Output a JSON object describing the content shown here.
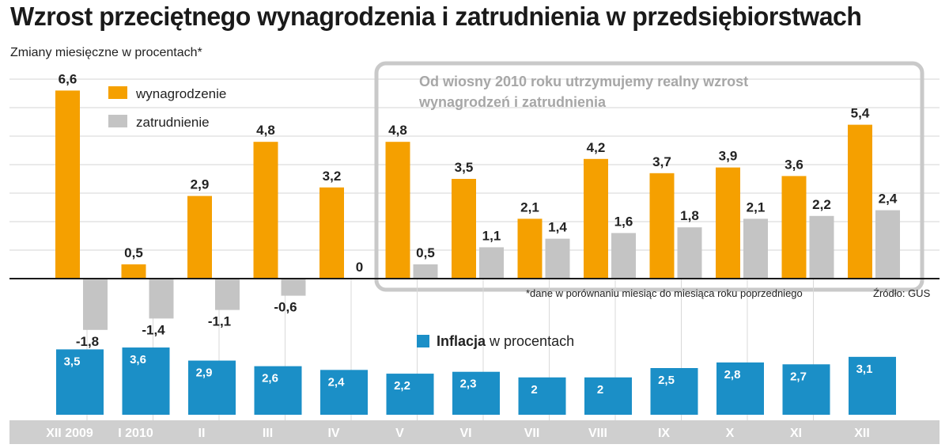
{
  "title": "Wzrost przeciętnego wynagrodzenia i zatrudnienia w przedsiębiorstwach",
  "subtitle": "Zmiany miesięczne w procentach*",
  "highlight_line1": "Od wiosny 2010 roku utrzymujemy realny wzrost",
  "highlight_line2": "wynagrodzeń i zatrudnienia",
  "footnote": "*dane w porównaniu miesiąc do miesiąca roku poprzedniego",
  "source": "Źródło: GUS",
  "colors": {
    "wages": "#f5a000",
    "employment": "#c4c4c4",
    "inflation": "#1b8fc7",
    "axis_band": "#cfcfcf"
  },
  "chart_data": {
    "type": "bar",
    "categories": [
      "XII 2009",
      "I 2010",
      "II",
      "III",
      "IV",
      "V",
      "VI",
      "VII",
      "VIII",
      "IX",
      "X",
      "XI",
      "XII"
    ],
    "series": [
      {
        "name": "wynagrodzenie",
        "values": [
          6.6,
          0.5,
          2.9,
          4.8,
          3.2,
          4.8,
          3.5,
          2.1,
          4.2,
          3.7,
          3.9,
          3.6,
          5.4
        ]
      },
      {
        "name": "zatrudnienie",
        "values": [
          -1.8,
          -1.4,
          -1.1,
          -0.6,
          0,
          0.5,
          1.1,
          1.4,
          1.6,
          1.8,
          2.1,
          2.2,
          2.4
        ]
      }
    ],
    "labels": {
      "wynagrodzenie": [
        "6,6",
        "0,5",
        "2,9",
        "4,8",
        "3,2",
        "4,8",
        "3,5",
        "2,1",
        "4,2",
        "3,7",
        "3,9",
        "3,6",
        "5,4"
      ],
      "zatrudnienie": [
        "-1,8",
        "-1,4",
        "-1,1",
        "-0,6",
        "0",
        "0,5",
        "1,1",
        "1,4",
        "1,6",
        "1,8",
        "2,1",
        "2,2",
        "2,4"
      ]
    },
    "inflation": {
      "title_bold": "Inflacja",
      "title_rest": " w procentach",
      "values": [
        3.5,
        3.6,
        2.9,
        2.6,
        2.4,
        2.2,
        2.3,
        2,
        2,
        2.5,
        2.8,
        2.7,
        3.1
      ],
      "labels": [
        "3,5",
        "3,6",
        "2,9",
        "2,6",
        "2,4",
        "2,2",
        "2,3",
        "2",
        "2",
        "2,5",
        "2,8",
        "2,7",
        "3,1"
      ]
    },
    "legend": [
      "wynagrodzenie",
      "zatrudnienie"
    ],
    "ylim": [
      -2,
      7
    ],
    "grid": true
  }
}
